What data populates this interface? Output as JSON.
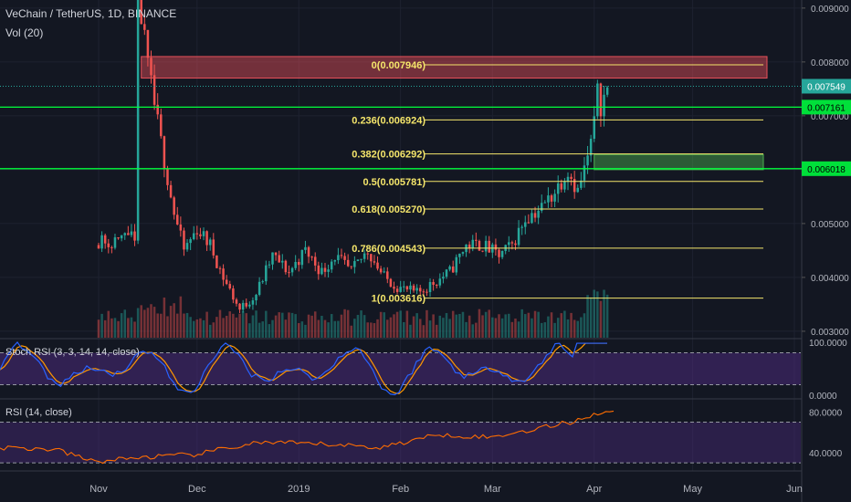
{
  "header": {
    "symbol_line": "VeChain / TetherUS, 1D, BINANCE",
    "volume_label": "Vol (20)"
  },
  "indicators": {
    "stoch_label": "Stoch RSI (3, 3, 14, 14, close)",
    "rsi_label": "RSI (14, close)"
  },
  "colors": {
    "background": "#131722",
    "up": "#26a69a",
    "down": "#ef5350",
    "fib": "#f5e66b",
    "fib_text": "#f5e66b",
    "support": "#00ff3c",
    "stoch_k": "#2962ff",
    "stoch_d": "#ff9800",
    "rsi": "#ff6d00",
    "band": "#4a2a7a"
  },
  "chart_data": [
    {
      "type": "candlestick",
      "pair": "VeChain / TetherUS",
      "x_ticks": [
        "Nov",
        "Dec",
        "2019",
        "Feb",
        "Mar",
        "Apr",
        "May",
        "Jun"
      ],
      "y_ticks": [
        "0.009000",
        "0.008000",
        "0.007000",
        "0.005000",
        "0.004000",
        "0.003000"
      ],
      "ylim": [
        0.00288,
        0.00915
      ],
      "last_price": "0.007549",
      "price_labels": [
        "0.007161",
        "0.006018"
      ],
      "support_levels": [
        0.007161,
        0.006018
      ],
      "fib_levels": [
        {
          "label": "0(0.007946)",
          "value": 0.007946
        },
        {
          "label": "0.236(0.006924)",
          "value": 0.006924
        },
        {
          "label": "0.382(0.006292)",
          "value": 0.006292
        },
        {
          "label": "0.5(0.005781)",
          "value": 0.005781
        },
        {
          "label": "0.618(0.005270)",
          "value": 0.00527
        },
        {
          "label": "0.786(0.004543)",
          "value": 0.004543
        },
        {
          "label": "1(0.003616)",
          "value": 0.003616
        }
      ],
      "resistance_zone": [
        0.0077,
        0.0081
      ],
      "demand_zone": [
        0.006,
        0.00628
      ],
      "price_path": [
        {
          "x": "Nov 13",
          "y": 0.0093
        },
        {
          "x": "Nov 16",
          "y": 0.0079
        },
        {
          "x": "Nov 20",
          "y": 0.0065
        },
        {
          "x": "Nov 24",
          "y": 0.0052
        },
        {
          "x": "Nov 27",
          "y": 0.0045
        },
        {
          "x": "Dec 1",
          "y": 0.0049
        },
        {
          "x": "Dec 5",
          "y": 0.0046
        },
        {
          "x": "Dec 9",
          "y": 0.004
        },
        {
          "x": "Dec 14",
          "y": 0.0034
        },
        {
          "x": "Dec 19",
          "y": 0.0037
        },
        {
          "x": "Dec 24",
          "y": 0.0044
        },
        {
          "x": "Dec 29",
          "y": 0.0041
        },
        {
          "x": "Jan 3",
          "y": 0.0045
        },
        {
          "x": "Jan 8",
          "y": 0.0041
        },
        {
          "x": "Jan 12",
          "y": 0.0044
        },
        {
          "x": "Jan 17",
          "y": 0.0041
        },
        {
          "x": "Jan 22",
          "y": 0.0045
        },
        {
          "x": "Jan 27",
          "y": 0.004
        },
        {
          "x": "Feb 1",
          "y": 0.0038
        },
        {
          "x": "Feb 6",
          "y": 0.0037
        },
        {
          "x": "Feb 11",
          "y": 0.0039
        },
        {
          "x": "Feb 16",
          "y": 0.0041
        },
        {
          "x": "Feb 21",
          "y": 0.0046
        },
        {
          "x": "Feb 26",
          "y": 0.0046
        },
        {
          "x": "Mar 3",
          "y": 0.0044
        },
        {
          "x": "Mar 7",
          "y": 0.0046
        },
        {
          "x": "Mar 11",
          "y": 0.0051
        },
        {
          "x": "Mar 16",
          "y": 0.0053
        },
        {
          "x": "Mar 20",
          "y": 0.0056
        },
        {
          "x": "Mar 24",
          "y": 0.006
        },
        {
          "x": "Mar 27",
          "y": 0.0056
        },
        {
          "x": "Mar 30",
          "y": 0.0062
        },
        {
          "x": "Apr 1",
          "y": 0.0068
        },
        {
          "x": "Apr 2",
          "y": 0.0077
        },
        {
          "x": "Apr 3",
          "y": 0.0072
        },
        {
          "x": "Apr 5",
          "y": 0.0075
        }
      ],
      "volume_series": [
        {
          "x": "Nov 1",
          "v": 0.25
        },
        {
          "x": "Nov 13",
          "v": 0.55
        },
        {
          "x": "Nov 18",
          "v": 0.45
        },
        {
          "x": "Nov 25",
          "v": 0.6
        },
        {
          "x": "Dec 10",
          "v": 0.35
        },
        {
          "x": "Jan 1",
          "v": 0.4
        },
        {
          "x": "Feb 1",
          "v": 0.3
        },
        {
          "x": "Feb 22",
          "v": 0.7
        },
        {
          "x": "Mar 15",
          "v": 0.5
        },
        {
          "x": "Apr 1",
          "v": 1.0
        },
        {
          "x": "Apr 5",
          "v": 0.3
        }
      ]
    },
    {
      "type": "line",
      "name": "Stoch RSI (3, 3, 14, 14, close)",
      "y_ticks": [
        "100.0000",
        "0.0000"
      ],
      "ylim": [
        -5,
        105
      ],
      "bands": [
        20,
        80
      ]
    },
    {
      "type": "line",
      "name": "RSI (14, close)",
      "y_ticks": [
        "80.0000",
        "40.0000"
      ],
      "ylim": [
        22,
        92
      ],
      "bands": [
        30,
        70
      ],
      "rsi_path": [
        {
          "x": "Nov 1",
          "y": 45
        },
        {
          "x": "Nov 15",
          "y": 43
        },
        {
          "x": "Nov 25",
          "y": 31
        },
        {
          "x": "Dec 5",
          "y": 35
        },
        {
          "x": "Dec 20",
          "y": 38
        },
        {
          "x": "Jan 5",
          "y": 50
        },
        {
          "x": "Jan 25",
          "y": 48
        },
        {
          "x": "Feb 5",
          "y": 45
        },
        {
          "x": "Feb 20",
          "y": 58
        },
        {
          "x": "Mar 5",
          "y": 55
        },
        {
          "x": "Mar 25",
          "y": 70
        },
        {
          "x": "Apr 2",
          "y": 80
        },
        {
          "x": "Apr 5",
          "y": 80
        }
      ]
    }
  ]
}
